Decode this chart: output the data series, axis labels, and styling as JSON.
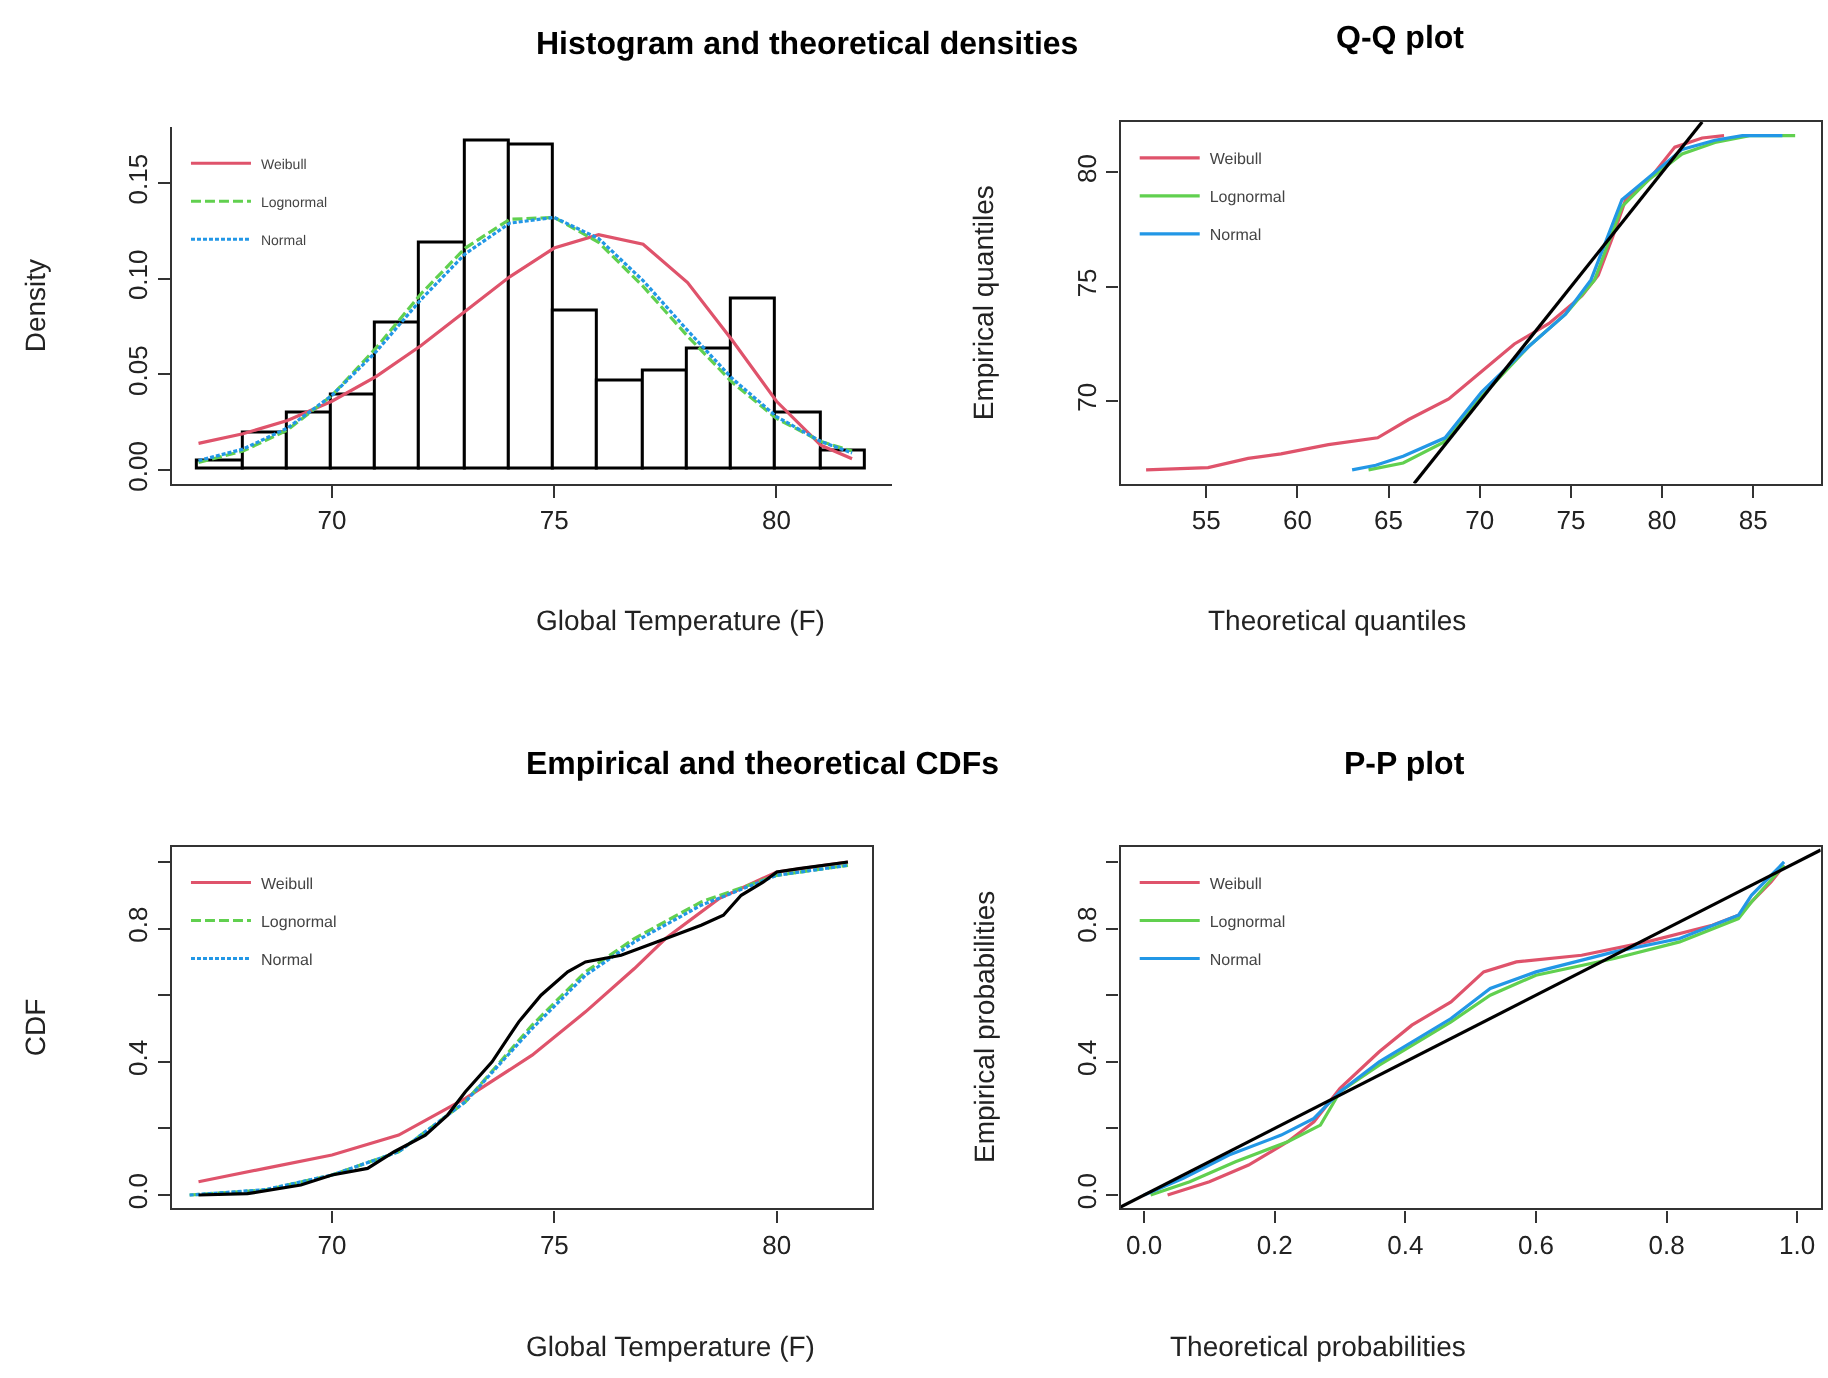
{
  "chart_data": [
    {
      "type": "histogram",
      "title": "Histogram and theoretical densities",
      "xlabel": "Global Temperature (F)",
      "ylabel": "Density",
      "bins": [
        67,
        68,
        69,
        70,
        71,
        72,
        73,
        74,
        75,
        76,
        77,
        78,
        79,
        80,
        81,
        82
      ],
      "values": [
        0.005,
        0.019,
        0.03,
        0.039,
        0.077,
        0.118,
        0.172,
        0.17,
        0.083,
        0.046,
        0.052,
        0.063,
        0.089,
        0.03,
        0.01
      ],
      "color": "#ffffff",
      "series": [
        {
          "name": "Weibull",
          "type": "line",
          "color": "#df536b",
          "line_style": "solid",
          "x": [
            67,
            68,
            69,
            70,
            71,
            72,
            73,
            74,
            75,
            76,
            77,
            78,
            79,
            80,
            81,
            81.7
          ],
          "values": [
            0.014,
            0.019,
            0.026,
            0.036,
            0.049,
            0.065,
            0.083,
            0.101,
            0.116,
            0.123,
            0.118,
            0.098,
            0.068,
            0.036,
            0.013,
            0.006
          ]
        },
        {
          "name": "Lognormal",
          "type": "line",
          "color": "#61d04f",
          "line_style": "dashed",
          "x": [
            67,
            68,
            69,
            70,
            71,
            72,
            73,
            74,
            75,
            76,
            77,
            78,
            79,
            80,
            81,
            81.7
          ],
          "values": [
            0.004,
            0.01,
            0.021,
            0.039,
            0.064,
            0.092,
            0.116,
            0.131,
            0.132,
            0.119,
            0.096,
            0.07,
            0.046,
            0.027,
            0.015,
            0.01
          ]
        },
        {
          "name": "Normal",
          "type": "line",
          "color": "#2297e6",
          "line_style": "dotted",
          "x": [
            67,
            68,
            69,
            70,
            71,
            72,
            73,
            74,
            75,
            76,
            77,
            78,
            79,
            80,
            81,
            81.7
          ],
          "values": [
            0.005,
            0.011,
            0.022,
            0.039,
            0.062,
            0.089,
            0.113,
            0.129,
            0.132,
            0.121,
            0.099,
            0.073,
            0.048,
            0.028,
            0.015,
            0.009
          ]
        }
      ],
      "xlim": [
        66.4,
        82.6
      ],
      "xticks": [
        70,
        75,
        80
      ],
      "ylim": [
        -0.007,
        0.179
      ],
      "yticks": [
        {
          "value": 0,
          "label": "0.00"
        },
        {
          "value": 0.05,
          "label": "0.05"
        },
        {
          "value": 0.1,
          "label": "0.10"
        },
        {
          "value": 0.15,
          "label": "0.15"
        }
      ],
      "legend": "top left"
    },
    {
      "type": "line",
      "title": "Q-Q plot",
      "xlabel": "Theoretical quantiles",
      "ylabel": "Empirical quantiles",
      "series": [
        {
          "name": "Weibull",
          "color": "#df536b",
          "line_style": "solid",
          "x": [
            51.7,
            55.1,
            57.3,
            59.1,
            61.7,
            64.4,
            66.1,
            68.3,
            70.1,
            71.9,
            73.8,
            75.6,
            76.5,
            77.3,
            78.0,
            79.3,
            80.7,
            82.2,
            83.4
          ],
          "values": [
            67.0,
            67.1,
            67.5,
            67.7,
            68.1,
            68.4,
            69.2,
            70.1,
            71.3,
            72.5,
            73.4,
            74.6,
            75.5,
            77.2,
            78.8,
            79.7,
            81.1,
            81.5,
            81.6
          ]
        },
        {
          "name": "Lognormal",
          "color": "#61d04f",
          "line_style": "solid",
          "x": [
            63.9,
            65.8,
            68.0,
            70.1,
            72.7,
            74.7,
            76.3,
            77.8,
            79.3,
            81.1,
            82.9,
            84.8,
            87.3
          ],
          "values": [
            67.0,
            67.3,
            68.2,
            70.2,
            72.4,
            73.8,
            75.3,
            78.5,
            79.7,
            80.8,
            81.3,
            81.6,
            81.6
          ]
        },
        {
          "name": "Normal",
          "color": "#2297e6",
          "line_style": "solid",
          "x": [
            63.0,
            64.3,
            65.8,
            68.1,
            70.1,
            72.7,
            74.7,
            76.1,
            77.8,
            79.3,
            81.1,
            82.9,
            84.4,
            86.6
          ],
          "values": [
            67.0,
            67.2,
            67.6,
            68.4,
            70.4,
            72.4,
            73.8,
            75.3,
            78.8,
            79.8,
            81.0,
            81.4,
            81.6,
            81.6
          ]
        },
        {
          "color": "#000000",
          "line_style": "solid",
          "x": [
            66.4,
            82.2
          ],
          "values": [
            66.4,
            82.2
          ]
        }
      ],
      "xlim": [
        50.3,
        88.7
      ],
      "xticks": [
        55,
        60,
        65,
        70,
        75,
        80,
        85
      ],
      "ylim": [
        66.4,
        82.2
      ],
      "yticks": [
        70,
        75,
        80
      ],
      "legend": "top left"
    },
    {
      "type": "line",
      "title": "Empirical and theoretical CDFs",
      "xlabel": "Global Temperature (F)",
      "ylabel": "CDF",
      "series": [
        {
          "name": "Weibull",
          "color": "#df536b",
          "line_style": "solid",
          "x": [
            67,
            68.5,
            70,
            71.5,
            73,
            74.5,
            75.7,
            76.8,
            77.5,
            78.7,
            80,
            81.6
          ],
          "values": [
            0.04,
            0.08,
            0.12,
            0.18,
            0.29,
            0.42,
            0.55,
            0.68,
            0.77,
            0.89,
            0.97,
            1.0
          ]
        },
        {
          "name": "Lognormal",
          "color": "#61d04f",
          "line_style": "dashed",
          "x": [
            66.8,
            68.5,
            70,
            71.5,
            73,
            74.5,
            75.7,
            76.8,
            78.3,
            80,
            81.6
          ],
          "values": [
            0.0,
            0.015,
            0.06,
            0.13,
            0.28,
            0.51,
            0.67,
            0.77,
            0.88,
            0.96,
            0.99
          ]
        },
        {
          "name": "Normal",
          "color": "#2297e6",
          "line_style": "dotted",
          "x": [
            66.8,
            68.5,
            70,
            71.5,
            73,
            74.5,
            75.7,
            76.8,
            78.3,
            80,
            81.6
          ],
          "values": [
            0.0,
            0.016,
            0.06,
            0.13,
            0.28,
            0.5,
            0.66,
            0.76,
            0.87,
            0.96,
            0.99
          ]
        },
        {
          "color": "#000000",
          "line_style": "solid",
          "x": [
            67,
            68.1,
            69.3,
            70,
            70.8,
            71.4,
            72.1,
            72.6,
            73,
            73.6,
            74.2,
            74.7,
            75.3,
            75.7,
            76.5,
            77.3,
            78.3,
            78.8,
            79.2,
            79.7,
            80,
            80.5,
            81.6
          ],
          "values": [
            0.0,
            0.004,
            0.03,
            0.06,
            0.08,
            0.13,
            0.18,
            0.24,
            0.31,
            0.4,
            0.52,
            0.6,
            0.67,
            0.7,
            0.72,
            0.76,
            0.81,
            0.84,
            0.9,
            0.94,
            0.97,
            0.98,
            1.0
          ]
        }
      ],
      "xlim": [
        66.4,
        82.14
      ],
      "xticks": [
        70,
        75,
        80
      ],
      "ylim": [
        -0.04,
        1.046
      ],
      "yticks": [
        {
          "value": 0,
          "label": "0.0"
        },
        {
          "value": 0.2,
          "label": null
        },
        {
          "value": 0.4,
          "label": "0.4"
        },
        {
          "value": 0.6,
          "label": null
        },
        {
          "value": 0.8,
          "label": "0.8"
        },
        {
          "value": 1.0,
          "label": null
        }
      ],
      "legend": "top left"
    },
    {
      "type": "line",
      "title": "P-P plot",
      "xlabel": "Theoretical probabilities",
      "ylabel": "Empirical probabilities",
      "series": [
        {
          "name": "Weibull",
          "color": "#df536b",
          "line_style": "solid",
          "x": [
            0.036,
            0.1,
            0.16,
            0.22,
            0.26,
            0.3,
            0.36,
            0.41,
            0.47,
            0.52,
            0.57,
            0.67,
            0.77,
            0.87,
            0.91,
            0.93,
            0.96,
            0.98
          ],
          "values": [
            0.0,
            0.04,
            0.09,
            0.16,
            0.22,
            0.32,
            0.43,
            0.51,
            0.58,
            0.67,
            0.7,
            0.72,
            0.76,
            0.81,
            0.84,
            0.88,
            0.94,
            0.99
          ]
        },
        {
          "name": "Lognormal",
          "color": "#61d04f",
          "line_style": "solid",
          "x": [
            0.01,
            0.07,
            0.14,
            0.22,
            0.27,
            0.3,
            0.36,
            0.47,
            0.53,
            0.6,
            0.72,
            0.82,
            0.91,
            0.93,
            0.98
          ],
          "values": [
            0.0,
            0.04,
            0.1,
            0.16,
            0.21,
            0.31,
            0.39,
            0.52,
            0.6,
            0.66,
            0.71,
            0.76,
            0.83,
            0.88,
            0.99
          ]
        },
        {
          "name": "Normal",
          "color": "#2297e6",
          "line_style": "solid",
          "x": [
            0.0,
            0.06,
            0.13,
            0.21,
            0.26,
            0.3,
            0.36,
            0.47,
            0.53,
            0.6,
            0.72,
            0.82,
            0.91,
            0.93,
            0.98
          ],
          "values": [
            0.0,
            0.05,
            0.12,
            0.18,
            0.23,
            0.31,
            0.4,
            0.53,
            0.62,
            0.67,
            0.73,
            0.77,
            0.84,
            0.9,
            1.0
          ]
        },
        {
          "color": "#000000",
          "line_style": "solid",
          "x": [
            -0.036,
            1.036
          ],
          "values": [
            -0.036,
            1.036
          ]
        }
      ],
      "xlim": [
        -0.036,
        1.036
      ],
      "xticks": [
        {
          "value": 0,
          "label": "0.0"
        },
        {
          "value": 0.2,
          "label": "0.2"
        },
        {
          "value": 0.4,
          "label": "0.4"
        },
        {
          "value": 0.6,
          "label": "0.6"
        },
        {
          "value": 0.8,
          "label": "0.8"
        },
        {
          "value": 1.0,
          "label": "1.0"
        }
      ],
      "ylim": [
        -0.04,
        1.046
      ],
      "yticks": [
        {
          "value": 0,
          "label": "0.0"
        },
        {
          "value": 0.2,
          "label": null
        },
        {
          "value": 0.4,
          "label": "0.4"
        },
        {
          "value": 0.6,
          "label": null
        },
        {
          "value": 0.8,
          "label": "0.8"
        },
        {
          "value": 1.0,
          "label": null
        }
      ],
      "legend": "top left"
    }
  ]
}
